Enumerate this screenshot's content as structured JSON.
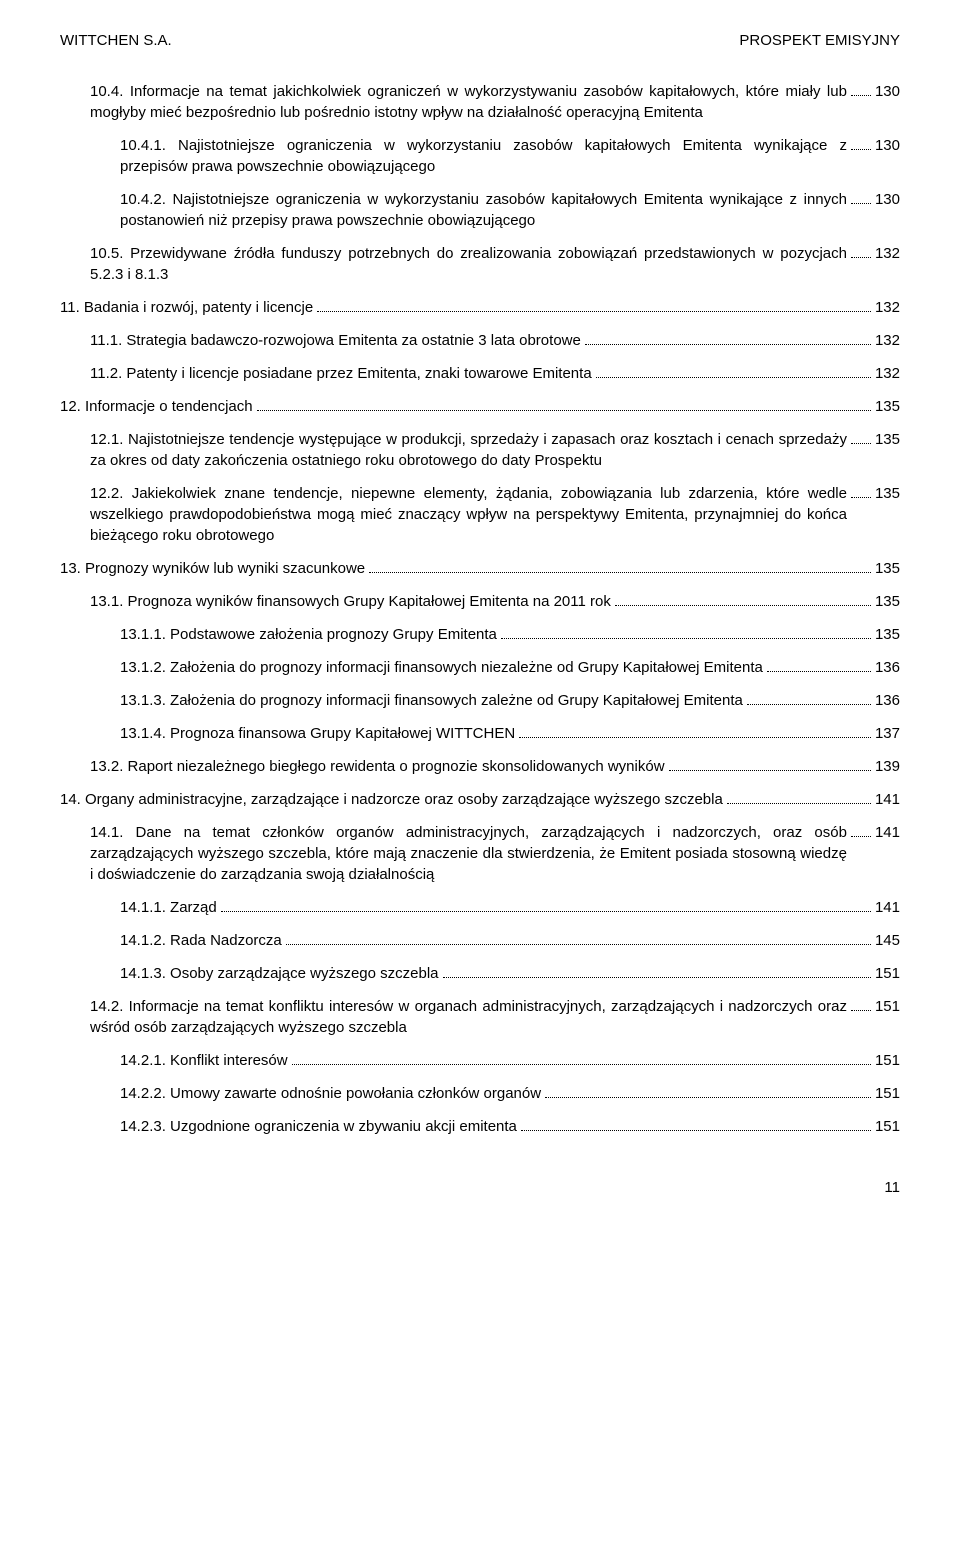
{
  "header": {
    "left": "WITTCHEN S.A.",
    "right": "PROSPEKT EMISYJNY"
  },
  "entries": [
    {
      "indent": 1,
      "text": "10.4. Informacje na temat jakichkolwiek ograniczeń w wykorzystywaniu zasobów kapitałowych, które miały lub mogłyby mieć bezpośrednio lub pośrednio istotny wpływ na działalność operacyjną Emitenta",
      "page": "130"
    },
    {
      "indent": 2,
      "text": "10.4.1. Najistotniejsze ograniczenia w wykorzystaniu zasobów kapitałowych Emitenta wynikające z przepisów prawa powszechnie obowiązującego",
      "page": "130"
    },
    {
      "indent": 2,
      "text": "10.4.2. Najistotniejsze ograniczenia w wykorzystaniu zasobów kapitałowych Emitenta wynikające z innych postanowień niż przepisy prawa powszechnie obowiązującego",
      "page": "130"
    },
    {
      "indent": 1,
      "text": "10.5. Przewidywane źródła funduszy potrzebnych do zrealizowania zobowiązań przedstawionych w pozycjach 5.2.3 i 8.1.3",
      "page": "132"
    },
    {
      "indent": 0,
      "text": "11. Badania i rozwój, patenty i licencje",
      "page": "132"
    },
    {
      "indent": 1,
      "text": "11.1. Strategia badawczo-rozwojowa Emitenta za ostatnie 3 lata obrotowe",
      "page": "132"
    },
    {
      "indent": 1,
      "text": "11.2. Patenty i licencje posiadane przez Emitenta, znaki towarowe Emitenta",
      "page": "132"
    },
    {
      "indent": 0,
      "text": "12. Informacje o tendencjach",
      "page": "135"
    },
    {
      "indent": 1,
      "text": "12.1. Najistotniejsze tendencje występujące w produkcji, sprzedaży i zapasach oraz kosztach i cenach sprzedaży za okres od daty zakończenia ostatniego roku obrotowego do daty Prospektu",
      "page": "135"
    },
    {
      "indent": 1,
      "text": "12.2. Jakiekolwiek znane tendencje, niepewne elementy, żądania, zobowiązania lub zdarzenia, które wedle wszelkiego prawdopodobieństwa mogą mieć znaczący wpływ na perspektywy Emitenta, przynajmniej do końca bieżącego roku obrotowego",
      "page": "135"
    },
    {
      "indent": 0,
      "text": "13. Prognozy wyników lub wyniki szacunkowe",
      "page": "135"
    },
    {
      "indent": 1,
      "text": "13.1. Prognoza wyników finansowych Grupy Kapitałowej Emitenta na 2011 rok",
      "page": "135"
    },
    {
      "indent": 2,
      "text": "13.1.1. Podstawowe założenia prognozy Grupy Emitenta",
      "page": "135"
    },
    {
      "indent": 2,
      "text": "13.1.2. Założenia do prognozy informacji finansowych niezależne od Grupy Kapitałowej Emitenta ",
      "page": "136"
    },
    {
      "indent": 2,
      "text": "13.1.3. Założenia do prognozy informacji finansowych zależne od Grupy Kapitałowej Emitenta ",
      "page": "136"
    },
    {
      "indent": 2,
      "text": "13.1.4. Prognoza finansowa Grupy Kapitałowej WITTCHEN",
      "page": "137"
    },
    {
      "indent": 1,
      "text": "13.2. Raport niezależnego biegłego rewidenta o prognozie skonsolidowanych wyników",
      "page": "139"
    },
    {
      "indent": 0,
      "text": "14. Organy administracyjne, zarządzające i nadzorcze oraz osoby zarządzające wyższego szczebla",
      "page": "141"
    },
    {
      "indent": 1,
      "text": "14.1. Dane na temat członków organów administracyjnych, zarządzających i nadzorczych, oraz osób zarządzających wyższego szczebla, które mają znaczenie dla stwierdzenia, że Emitent posiada stosowną wiedzę i doświadczenie do zarządzania swoją działalnością",
      "page": "141"
    },
    {
      "indent": 2,
      "text": "14.1.1. Zarząd  ",
      "page": "141"
    },
    {
      "indent": 2,
      "text": "14.1.2. Rada Nadzorcza",
      "page": "145"
    },
    {
      "indent": 2,
      "text": "14.1.3. Osoby zarządzające wyższego szczebla",
      "page": "151"
    },
    {
      "indent": 1,
      "text": "14.2. Informacje na temat konfliktu interesów w organach administracyjnych, zarządzających i nadzorczych oraz wśród osób zarządzających wyższego szczebla",
      "page": "151"
    },
    {
      "indent": 2,
      "text": "14.2.1. Konflikt interesów",
      "page": "151"
    },
    {
      "indent": 2,
      "text": "14.2.2. Umowy zawarte odnośnie powołania członków organów",
      "page": "151"
    },
    {
      "indent": 2,
      "text": "14.2.3. Uzgodnione ograniczenia w zbywaniu akcji emitenta",
      "page": "151"
    }
  ],
  "footer": {
    "page_number": "11"
  }
}
